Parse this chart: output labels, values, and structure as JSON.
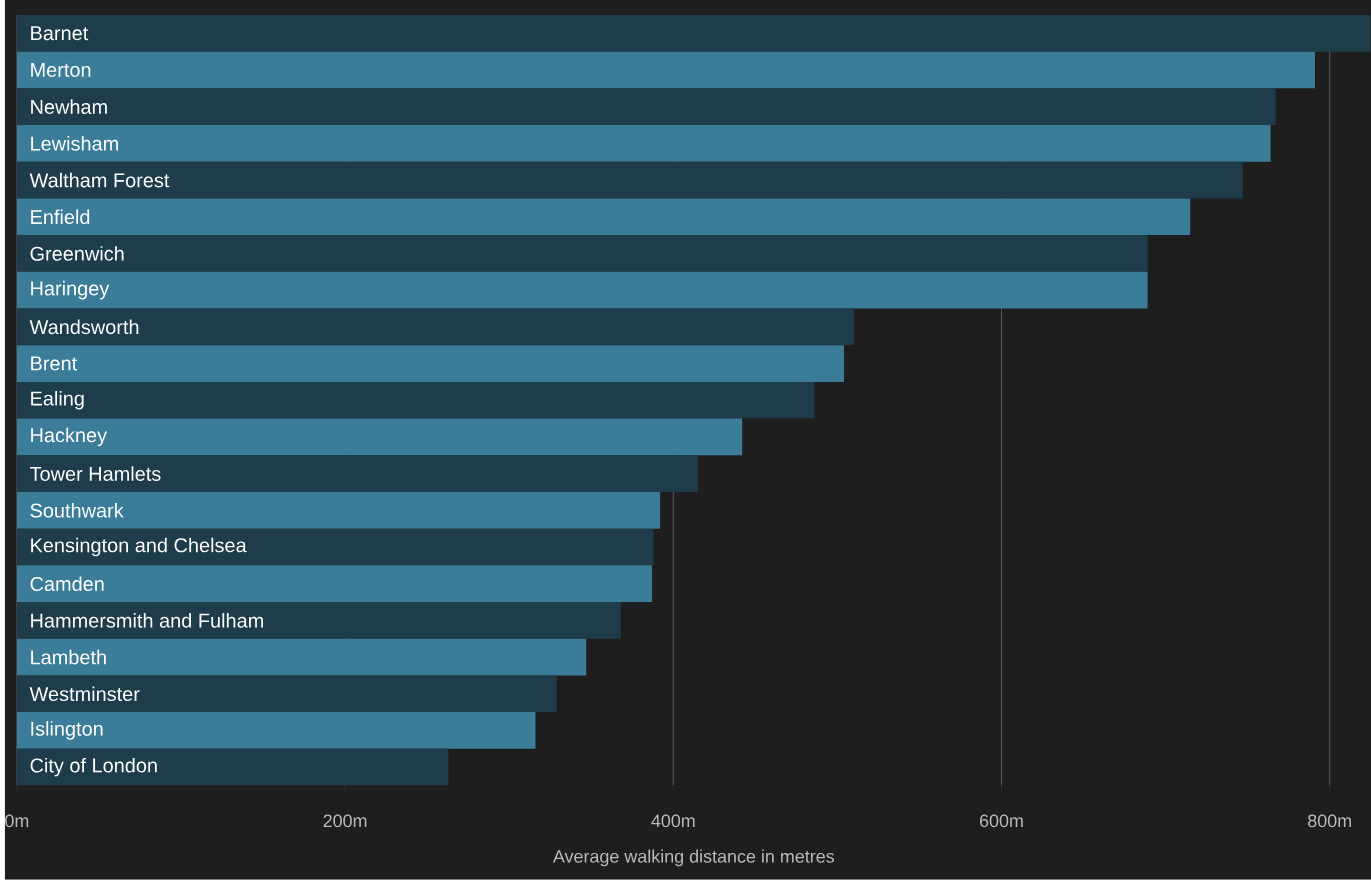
{
  "chart_data": {
    "type": "bar",
    "orientation": "horizontal",
    "xlabel": "Average walking distance in metres",
    "categories": [
      "Barnet",
      "Merton",
      "Newham",
      "Lewisham",
      "Waltham Forest",
      "Enfield",
      "Greenwich",
      "Haringey",
      "Wandsworth",
      "Brent",
      "Ealing",
      "Hackney",
      "Tower Hamlets",
      "Southwark",
      "Kensington and Chelsea",
      "Camden",
      "Hammersmith and Fulham",
      "Lambeth",
      "Westminster",
      "Islington",
      "City of London"
    ],
    "values": [
      825,
      791,
      767,
      764,
      747,
      715,
      689,
      689,
      510,
      504,
      486,
      442,
      415,
      392,
      388,
      387,
      368,
      347,
      329,
      316,
      263
    ],
    "colors": [
      "#1f3c4a",
      "#3b7c99",
      "#1f3c4a",
      "#3b7c99",
      "#1f3c4a",
      "#3b7c99",
      "#1f3c4a",
      "#3b7c99",
      "#1f3c4a",
      "#3b7c99",
      "#1f3c4a",
      "#3b7c99",
      "#1f3c4a",
      "#3b7c99",
      "#1f3c4a",
      "#3b7c99",
      "#1f3c4a",
      "#3b7c99",
      "#1f3c4a",
      "#3b7c99",
      "#1f3c4a"
    ],
    "xlim": [
      0,
      825
    ],
    "xticks": [
      {
        "value": 0,
        "label": "0m"
      },
      {
        "value": 200,
        "label": "200m"
      },
      {
        "value": 400,
        "label": "400m"
      },
      {
        "value": 600,
        "label": "600m"
      },
      {
        "value": 800,
        "label": "800m"
      }
    ],
    "grid": "x"
  }
}
